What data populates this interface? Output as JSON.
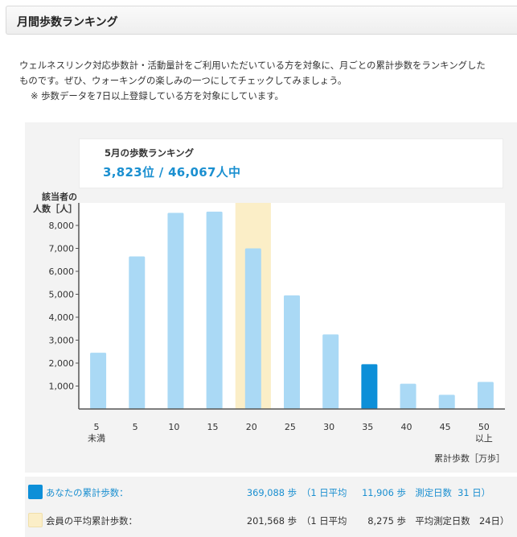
{
  "header": {
    "title": "月間歩数ランキング"
  },
  "intro": {
    "line1": "ウェルネスリンク対応歩数計・活動量計をご利用いただいている方を対象に、月ごとの累計歩数をランキングした",
    "line2": "ものです。ぜひ、ウォーキングの楽しみの一つにしてチェックしてみましょう。",
    "note": "※ 歩数データを7日以上登録している方を対象にしています。"
  },
  "ranking": {
    "title": "5月の歩数ランキング",
    "value": "3,823位 / 46,067人中"
  },
  "colors": {
    "bar": "#aad9f5",
    "highlight_bar": "#0d8fd8",
    "average_band": "#fbeec7",
    "accent_text": "#1a8fd0"
  },
  "chart_data": {
    "type": "bar",
    "ylabel_line1": "該当者の",
    "ylabel_line2": "人数［人］",
    "xlabel": "累計歩数［万歩］",
    "categories": [
      [
        "5",
        "未満"
      ],
      [
        "5"
      ],
      [
        "10"
      ],
      [
        "15"
      ],
      [
        "20"
      ],
      [
        "25"
      ],
      [
        "30"
      ],
      [
        "35"
      ],
      [
        "40"
      ],
      [
        "45"
      ],
      [
        "50",
        "以上"
      ]
    ],
    "values": [
      2450,
      6650,
      8550,
      8600,
      7000,
      4950,
      3250,
      1950,
      1100,
      620,
      1180
    ],
    "y_ticks": [
      "1,000",
      "2,000",
      "3,000",
      "4,000",
      "5,000",
      "6,000",
      "7,000",
      "8,000"
    ],
    "ylim": [
      0,
      9000
    ],
    "highlight_index": 7,
    "average_band_index": 4,
    "grid": false
  },
  "legend": {
    "you": {
      "label": "あなたの累計歩数：",
      "value": "369,088 歩",
      "detail": "（1 日平均　  11,906 歩　測定日数  31 日）"
    },
    "average": {
      "label": "会員の平均累計歩数：",
      "value": "201,568 歩",
      "detail": "（1 日平均　    8,275 歩　平均測定日数　24日）"
    }
  }
}
